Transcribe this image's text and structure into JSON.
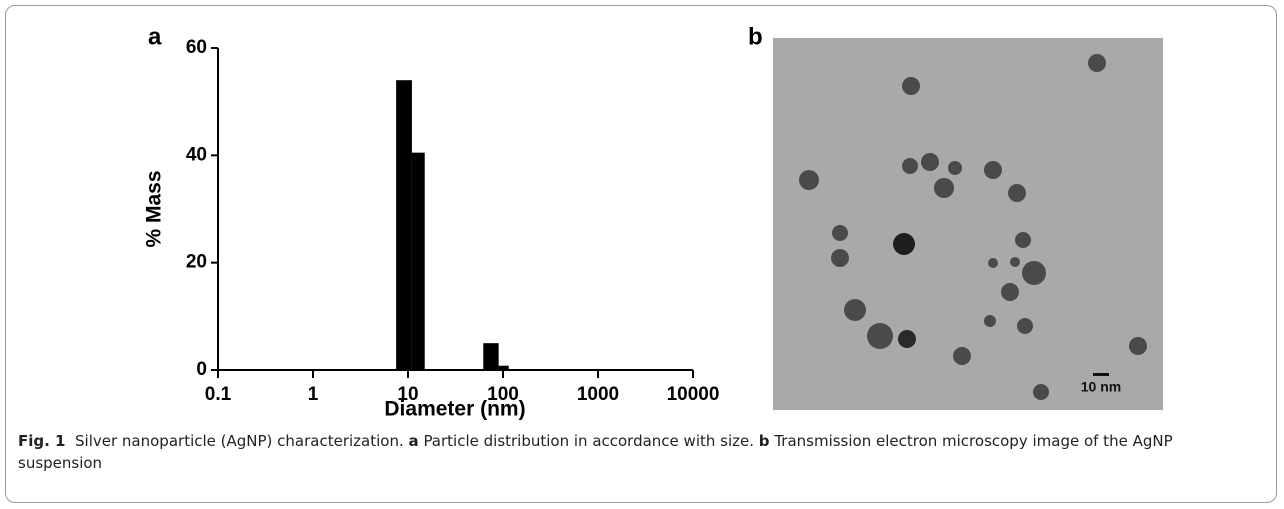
{
  "panels": [
    "a",
    "b"
  ],
  "chart_data": {
    "type": "histogram",
    "xlabel": "Diameter (nm)",
    "ylabel": "% Mass",
    "bins": [
      7.5,
      11,
      15,
      62,
      90,
      115
    ],
    "counts": [
      54,
      40.5,
      0,
      5,
      0.8
    ],
    "color": "#000000",
    "xscale": "log",
    "xlim": [
      0.1,
      10000
    ],
    "xticks": [
      0.1,
      1,
      10,
      100,
      1000,
      10000
    ],
    "ylim": [
      0,
      60
    ],
    "yticks": [
      0,
      20,
      40,
      60
    ]
  },
  "image": {
    "scale_label": "10 nm"
  },
  "caption": {
    "label": "Fig. 1",
    "intro": "Silver nanoparticle (AgNP) characterization.",
    "a_text": "Particle distribution in accordance with size.",
    "b_text": "Transmission electron microscopy image of the AgNP suspension"
  }
}
